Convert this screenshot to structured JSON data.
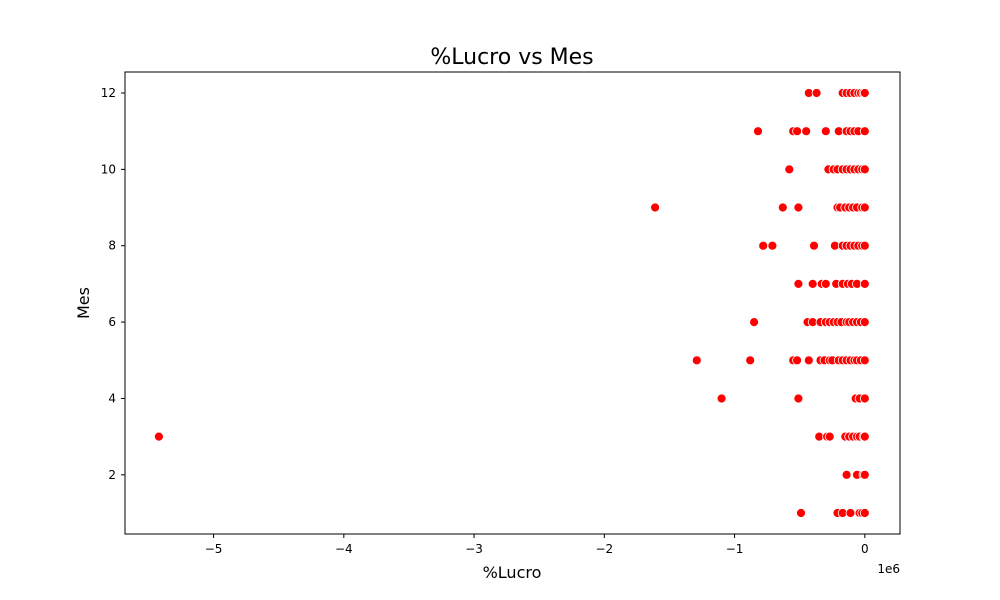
{
  "chart_data": {
    "type": "scatter",
    "title": "%Lucro vs Mes",
    "xlabel": "%Lucro",
    "ylabel": "Mes",
    "x_offset_label": "1e6",
    "x_scale_factor": 1000000,
    "xlim": [
      -5680000,
      270000
    ],
    "ylim": [
      0.45,
      12.55
    ],
    "x_ticks": [
      -5000000,
      -4000000,
      -3000000,
      -2000000,
      -1000000,
      0
    ],
    "x_tick_labels": [
      "−5",
      "−4",
      "−3",
      "−2",
      "−1",
      "0"
    ],
    "y_ticks": [
      2,
      4,
      6,
      8,
      10,
      12
    ],
    "y_tick_labels": [
      "2",
      "4",
      "6",
      "8",
      "10",
      "12"
    ],
    "grid": false,
    "marker_color": "#ff0000",
    "marker_edge_color": "#ffffff",
    "series": [
      {
        "points": [
          [
            -490000,
            1
          ],
          [
            -210000,
            1
          ],
          [
            -170000,
            1
          ],
          [
            -110000,
            1
          ],
          [
            -40000,
            1
          ],
          [
            -20000,
            1
          ],
          [
            0,
            1
          ],
          [
            -140000,
            2
          ],
          [
            -60000,
            2
          ],
          [
            -10000,
            2
          ],
          [
            0,
            2
          ],
          [
            -5420000,
            3
          ],
          [
            -350000,
            3
          ],
          [
            -290000,
            3
          ],
          [
            -270000,
            3
          ],
          [
            -150000,
            3
          ],
          [
            -120000,
            3
          ],
          [
            -90000,
            3
          ],
          [
            -60000,
            3
          ],
          [
            -40000,
            3
          ],
          [
            -10000,
            3
          ],
          [
            0,
            3
          ],
          [
            -1100000,
            4
          ],
          [
            -510000,
            4
          ],
          [
            -70000,
            4
          ],
          [
            -40000,
            4
          ],
          [
            0,
            4
          ],
          [
            -1290000,
            5
          ],
          [
            -880000,
            5
          ],
          [
            -550000,
            5
          ],
          [
            -520000,
            5
          ],
          [
            -430000,
            5
          ],
          [
            -340000,
            5
          ],
          [
            -310000,
            5
          ],
          [
            -270000,
            5
          ],
          [
            -250000,
            5
          ],
          [
            -200000,
            5
          ],
          [
            -170000,
            5
          ],
          [
            -140000,
            5
          ],
          [
            -110000,
            5
          ],
          [
            -80000,
            5
          ],
          [
            -60000,
            5
          ],
          [
            -30000,
            5
          ],
          [
            0,
            5
          ],
          [
            -850000,
            6
          ],
          [
            -440000,
            6
          ],
          [
            -400000,
            6
          ],
          [
            -340000,
            6
          ],
          [
            -300000,
            6
          ],
          [
            -270000,
            6
          ],
          [
            -240000,
            6
          ],
          [
            -210000,
            6
          ],
          [
            -180000,
            6
          ],
          [
            -140000,
            6
          ],
          [
            -120000,
            6
          ],
          [
            -90000,
            6
          ],
          [
            -60000,
            6
          ],
          [
            -30000,
            6
          ],
          [
            0,
            6
          ],
          [
            -510000,
            7
          ],
          [
            -400000,
            7
          ],
          [
            -330000,
            7
          ],
          [
            -300000,
            7
          ],
          [
            -220000,
            7
          ],
          [
            -170000,
            7
          ],
          [
            -130000,
            7
          ],
          [
            -100000,
            7
          ],
          [
            -60000,
            7
          ],
          [
            0,
            7
          ],
          [
            -780000,
            8
          ],
          [
            -710000,
            8
          ],
          [
            -390000,
            8
          ],
          [
            -230000,
            8
          ],
          [
            -170000,
            8
          ],
          [
            -140000,
            8
          ],
          [
            -110000,
            8
          ],
          [
            -80000,
            8
          ],
          [
            -50000,
            8
          ],
          [
            -20000,
            8
          ],
          [
            0,
            8
          ],
          [
            -1610000,
            9
          ],
          [
            -630000,
            9
          ],
          [
            -510000,
            9
          ],
          [
            -210000,
            9
          ],
          [
            -190000,
            9
          ],
          [
            -150000,
            9
          ],
          [
            -120000,
            9
          ],
          [
            -90000,
            9
          ],
          [
            -60000,
            9
          ],
          [
            -20000,
            9
          ],
          [
            0,
            9
          ],
          [
            -580000,
            10
          ],
          [
            -280000,
            10
          ],
          [
            -240000,
            10
          ],
          [
            -210000,
            10
          ],
          [
            -170000,
            10
          ],
          [
            -140000,
            10
          ],
          [
            -110000,
            10
          ],
          [
            -80000,
            10
          ],
          [
            -50000,
            10
          ],
          [
            -20000,
            10
          ],
          [
            0,
            10
          ],
          [
            -820000,
            11
          ],
          [
            -550000,
            11
          ],
          [
            -520000,
            11
          ],
          [
            -450000,
            11
          ],
          [
            -300000,
            11
          ],
          [
            -200000,
            11
          ],
          [
            -140000,
            11
          ],
          [
            -110000,
            11
          ],
          [
            -80000,
            11
          ],
          [
            -50000,
            11
          ],
          [
            0,
            11
          ],
          [
            -430000,
            12
          ],
          [
            -370000,
            12
          ],
          [
            -170000,
            12
          ],
          [
            -140000,
            12
          ],
          [
            -110000,
            12
          ],
          [
            -80000,
            12
          ],
          [
            -50000,
            12
          ],
          [
            -30000,
            12
          ],
          [
            -10000,
            12
          ],
          [
            0,
            12
          ]
        ]
      }
    ]
  }
}
